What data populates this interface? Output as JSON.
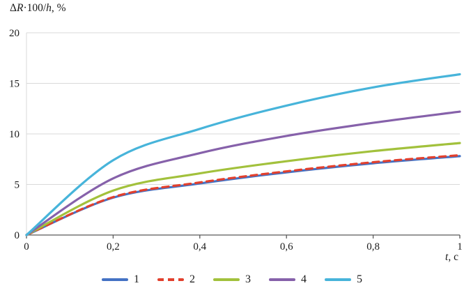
{
  "chart_data": {
    "type": "line",
    "title": "",
    "ylabel": "ΔR·100/h, %",
    "xlabel": "t, c",
    "ylabel_parts": {
      "p1": "Δ",
      "p2": "R",
      "p3": "·100/",
      "p4": "h",
      "p5": ", %"
    },
    "xlabel_parts": {
      "p1": "t",
      "p2": ", c"
    },
    "x": [
      0,
      0.2,
      0.4,
      0.6,
      0.8,
      1
    ],
    "x_tick_labels": [
      "0",
      "0,2",
      "0,4",
      "0,6",
      "0,8",
      "1"
    ],
    "y_ticks": [
      0,
      5,
      10,
      15,
      20
    ],
    "y_tick_labels": [
      "0",
      "5",
      "10",
      "15",
      "20"
    ],
    "xlim": [
      0,
      1
    ],
    "ylim": [
      0,
      20
    ],
    "grid": "horizontal",
    "legend_position": "bottom",
    "axis_color": "#595959",
    "grid_color": "#d9d9d9",
    "series": [
      {
        "name": "1",
        "color": "#4472c4",
        "dash": false,
        "values": [
          0,
          3.7,
          5.1,
          6.2,
          7.1,
          7.8
        ]
      },
      {
        "name": "2",
        "color": "#e2402d",
        "dash": true,
        "values": [
          0,
          3.75,
          5.2,
          6.3,
          7.2,
          7.9
        ]
      },
      {
        "name": "3",
        "color": "#a2c13c",
        "dash": false,
        "values": [
          0,
          4.4,
          6.1,
          7.3,
          8.3,
          9.1
        ]
      },
      {
        "name": "4",
        "color": "#8661aa",
        "dash": false,
        "values": [
          0,
          5.6,
          8.1,
          9.8,
          11.1,
          12.2
        ]
      },
      {
        "name": "5",
        "color": "#47b4da",
        "dash": false,
        "values": [
          0,
          7.4,
          10.5,
          12.8,
          14.6,
          15.9
        ]
      }
    ]
  }
}
